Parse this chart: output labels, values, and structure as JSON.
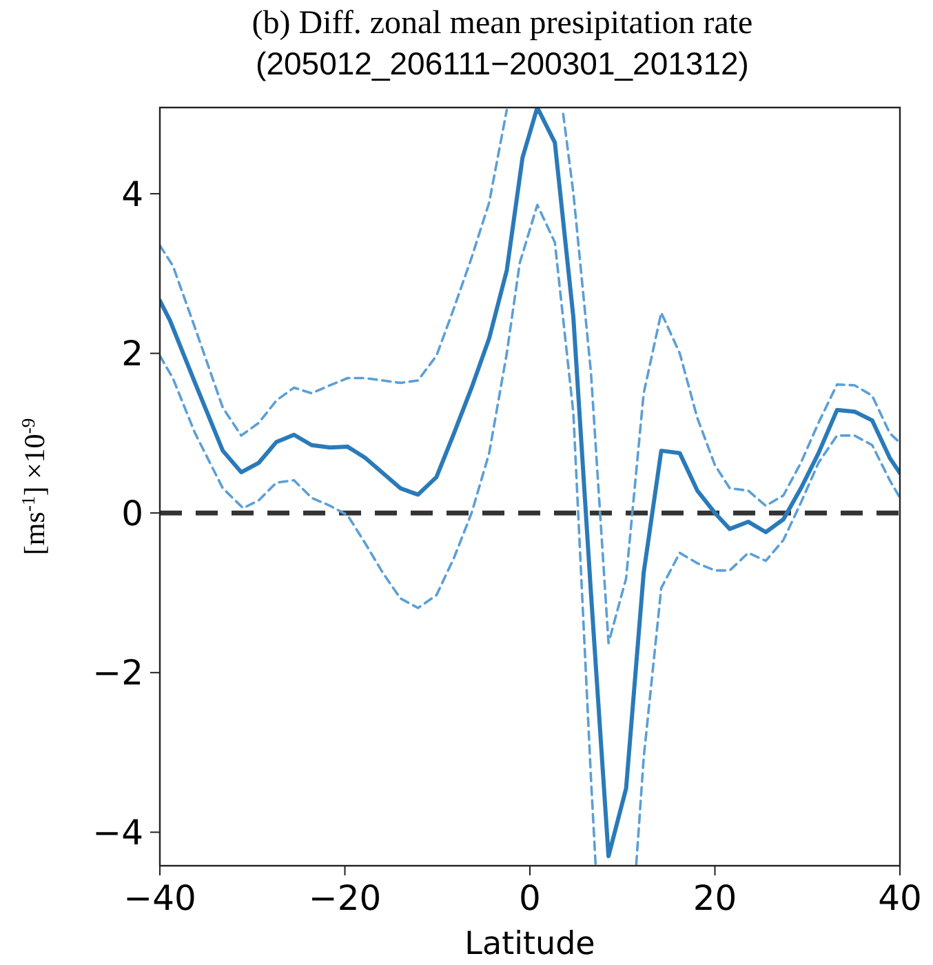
{
  "chart_data": {
    "type": "line",
    "title": "(b) Diff. zonal mean presipitation rate",
    "subtitle": "(205012_206111−200301_201312)",
    "xlabel": "Latitude",
    "ylabel": "[ms$^{-1}$] ×10$^{-9}$",
    "xlim": [
      -40,
      40
    ],
    "ylim": [
      -4.42,
      5.08
    ],
    "xticks": [
      {
        "value": -40,
        "label": "−40"
      },
      {
        "value": -20,
        "label": "−20"
      },
      0,
      20,
      40
    ],
    "yticks": [
      {
        "value": -4,
        "label": "−4"
      },
      {
        "value": -2,
        "label": "−2"
      },
      0,
      2,
      4
    ],
    "grid": false,
    "marker": "none",
    "ref_lines": [
      {
        "axis": "y",
        "value": 0,
        "color": "#333333",
        "line_style": "dashed"
      }
    ],
    "series": [
      {
        "color": "#2a7ab9",
        "line_style": "solid",
        "x": [
          -40,
          -38.9,
          -36.2,
          -33.2,
          -31.2,
          -29.3,
          -27.4,
          -25.5,
          -23.6,
          -21.6,
          -19.7,
          -17.8,
          -15.9,
          -14,
          -12.1,
          -10.1,
          -8.2,
          -6.3,
          -4.4,
          -2.5,
          -0.8,
          0.8,
          2.7,
          4.7,
          6.6,
          8.5,
          10.4,
          12.3,
          14.2,
          16.2,
          18.1,
          20,
          21.6,
          23.6,
          25.5,
          27.4,
          29.3,
          31.2,
          33.2,
          35.1,
          37,
          38.9,
          40
        ],
        "values": [
          2.66,
          2.41,
          1.63,
          0.78,
          0.51,
          0.63,
          0.89,
          0.98,
          0.85,
          0.82,
          0.83,
          0.69,
          0.5,
          0.31,
          0.23,
          0.45,
          1.0,
          1.57,
          2.19,
          3.04,
          4.45,
          5.08,
          4.64,
          2.45,
          -1.0,
          -4.3,
          -3.45,
          -0.75,
          0.78,
          0.75,
          0.28,
          0,
          -0.2,
          -0.11,
          -0.24,
          -0.08,
          0.31,
          0.75,
          1.29,
          1.27,
          1.16,
          0.69,
          0.5
        ]
      },
      {
        "color": "#5b9fd6",
        "line_style": "dashed",
        "x": [
          -40,
          -38.6,
          -36.2,
          -33.2,
          -31.2,
          -29.3,
          -27.4,
          -25.5,
          -23.6,
          -21.6,
          -19.7,
          -17.8,
          -15.9,
          -14,
          -12.1,
          -10.1,
          -8.2,
          -6.3,
          -4.4,
          -2.5,
          0.8,
          3.6,
          4.7,
          6.6,
          8.5,
          10.4,
          12.3,
          14.2,
          16.2,
          18.1,
          20,
          21.6,
          23.6,
          25.5,
          27.4,
          29.3,
          31.2,
          33.2,
          35.1,
          37,
          38.9,
          40
        ],
        "values": [
          3.35,
          3.1,
          2.32,
          1.32,
          0.97,
          1.13,
          1.41,
          1.57,
          1.5,
          1.6,
          1.69,
          1.69,
          1.66,
          1.63,
          1.66,
          1.97,
          2.57,
          3.2,
          3.89,
          5.05,
          null,
          5.0,
          4.01,
          1.76,
          -1.63,
          -0.82,
          1.5,
          2.51,
          2.0,
          1.19,
          0.6,
          0.31,
          0.28,
          0.09,
          0.22,
          0.63,
          1.13,
          1.61,
          1.6,
          1.47,
          1.0,
          0.88
        ]
      },
      {
        "color": "#5b9fd6",
        "line_style": "dashed",
        "x": [
          -40,
          -38.6,
          -36.2,
          -33.2,
          -31,
          -29.3,
          -27.4,
          -25.5,
          -23.6,
          -21.6,
          -19.7,
          -17.8,
          -15.9,
          -14,
          -12.1,
          -10.1,
          -8.2,
          -6.3,
          -4.4,
          -2.5,
          -1.1,
          0.8,
          2.7,
          4.7,
          6.6,
          7.1,
          9.3,
          11.5,
          12.3,
          14.2,
          16.2,
          18.1,
          20,
          21.6,
          23.6,
          25.5,
          27.4,
          29.3,
          31.2,
          33.2,
          35.1,
          37,
          38.9,
          40
        ],
        "values": [
          1.97,
          1.69,
          1.0,
          0.31,
          0.06,
          0.16,
          0.38,
          0.41,
          0.19,
          0.09,
          -0.03,
          -0.38,
          -0.75,
          -1.07,
          -1.19,
          -1.03,
          -0.56,
          0,
          0.75,
          2.0,
          3.13,
          3.86,
          3.39,
          1.25,
          -3.32,
          -4.4,
          null,
          -4.4,
          -3.07,
          -0.94,
          -0.5,
          -0.63,
          -0.72,
          -0.72,
          -0.5,
          -0.6,
          -0.34,
          0.13,
          0.63,
          0.97,
          0.97,
          0.85,
          0.41,
          0.19
        ]
      }
    ]
  }
}
